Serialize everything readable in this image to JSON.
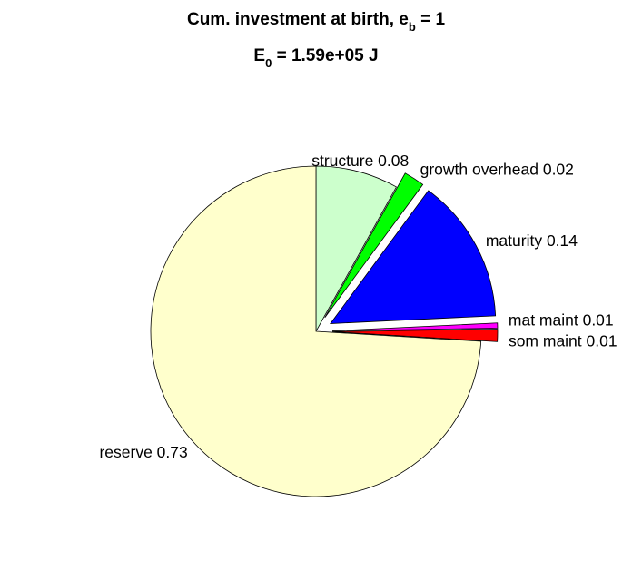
{
  "chart_data": {
    "type": "pie",
    "title": {
      "line1_main": "Cum. investment at birth, e",
      "line1_sub": "b",
      "line1_tail": " = 1",
      "line2_main": "E",
      "line2_sub": "0",
      "line2_tail": " = 1.59e+05 J"
    },
    "start_angle_deg": 90,
    "direction": "clockwise",
    "slices": [
      {
        "name": "structure",
        "label": "structure 0.08",
        "value": 0.08,
        "color": "#CCFFCC",
        "exploded": false
      },
      {
        "name": "growth-overhead",
        "label": "growth overhead 0.02",
        "value": 0.02,
        "color": "#00FF00",
        "exploded": true
      },
      {
        "name": "maturity",
        "label": "maturity 0.14",
        "value": 0.14,
        "color": "#0000FF",
        "exploded": true
      },
      {
        "name": "mat-maint",
        "label": "mat maint 0.01",
        "value": 0.005,
        "color": "#FF00FF",
        "exploded": true
      },
      {
        "name": "som-maint",
        "label": "som maint 0.01",
        "value": 0.012,
        "color": "#FF0000",
        "exploded": true
      },
      {
        "name": "reserve",
        "label": "reserve 0.73",
        "value": 0.733,
        "color": "#FFFFCC",
        "exploded": false
      }
    ]
  }
}
